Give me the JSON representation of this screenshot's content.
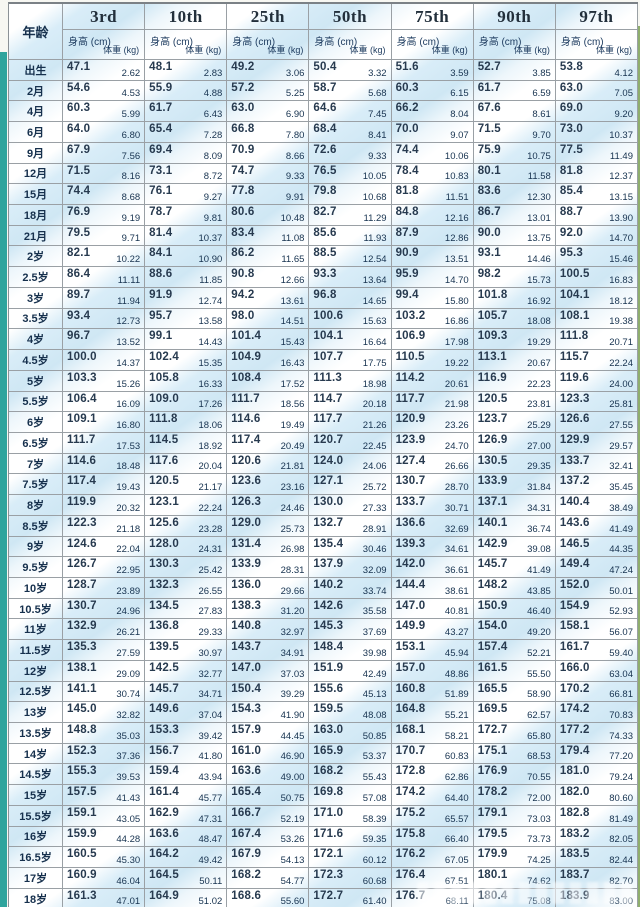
{
  "header": {
    "age_label": "年龄",
    "height_label": "身高 (cm)",
    "weight_label": "体重 (kg)",
    "percentiles": [
      "3rd",
      "10th",
      "25th",
      "50th",
      "75th",
      "90th",
      "97th"
    ]
  },
  "rows": [
    {
      "age": "出生",
      "cells": [
        [
          "47.1",
          "2.62"
        ],
        [
          "48.1",
          "2.83"
        ],
        [
          "49.2",
          "3.06"
        ],
        [
          "50.4",
          "3.32"
        ],
        [
          "51.6",
          "3.59"
        ],
        [
          "52.7",
          "3.85"
        ],
        [
          "53.8",
          "4.12"
        ]
      ]
    },
    {
      "age": "2月",
      "cells": [
        [
          "54.6",
          "4.53"
        ],
        [
          "55.9",
          "4.88"
        ],
        [
          "57.2",
          "5.25"
        ],
        [
          "58.7",
          "5.68"
        ],
        [
          "60.3",
          "6.15"
        ],
        [
          "61.7",
          "6.59"
        ],
        [
          "63.0",
          "7.05"
        ]
      ]
    },
    {
      "age": "4月",
      "cells": [
        [
          "60.3",
          "5.99"
        ],
        [
          "61.7",
          "6.43"
        ],
        [
          "63.0",
          "6.90"
        ],
        [
          "64.6",
          "7.45"
        ],
        [
          "66.2",
          "8.04"
        ],
        [
          "67.6",
          "8.61"
        ],
        [
          "69.0",
          "9.20"
        ]
      ]
    },
    {
      "age": "6月",
      "cells": [
        [
          "64.0",
          "6.80"
        ],
        [
          "65.4",
          "7.28"
        ],
        [
          "66.8",
          "7.80"
        ],
        [
          "68.4",
          "8.41"
        ],
        [
          "70.0",
          "9.07"
        ],
        [
          "71.5",
          "9.70"
        ],
        [
          "73.0",
          "10.37"
        ]
      ]
    },
    {
      "age": "9月",
      "cells": [
        [
          "67.9",
          "7.56"
        ],
        [
          "69.4",
          "8.09"
        ],
        [
          "70.9",
          "8.66"
        ],
        [
          "72.6",
          "9.33"
        ],
        [
          "74.4",
          "10.06"
        ],
        [
          "75.9",
          "10.75"
        ],
        [
          "77.5",
          "11.49"
        ]
      ]
    },
    {
      "age": "12月",
      "cells": [
        [
          "71.5",
          "8.16"
        ],
        [
          "73.1",
          "8.72"
        ],
        [
          "74.7",
          "9.33"
        ],
        [
          "76.5",
          "10.05"
        ],
        [
          "78.4",
          "10.83"
        ],
        [
          "80.1",
          "11.58"
        ],
        [
          "81.8",
          "12.37"
        ]
      ]
    },
    {
      "age": "15月",
      "cells": [
        [
          "74.4",
          "8.68"
        ],
        [
          "76.1",
          "9.27"
        ],
        [
          "77.8",
          "9.91"
        ],
        [
          "79.8",
          "10.68"
        ],
        [
          "81.8",
          "11.51"
        ],
        [
          "83.6",
          "12.30"
        ],
        [
          "85.4",
          "13.15"
        ]
      ]
    },
    {
      "age": "18月",
      "cells": [
        [
          "76.9",
          "9.19"
        ],
        [
          "78.7",
          "9.81"
        ],
        [
          "80.6",
          "10.48"
        ],
        [
          "82.7",
          "11.29"
        ],
        [
          "84.8",
          "12.16"
        ],
        [
          "86.7",
          "13.01"
        ],
        [
          "88.7",
          "13.90"
        ]
      ]
    },
    {
      "age": "21月",
      "cells": [
        [
          "79.5",
          "9.71"
        ],
        [
          "81.4",
          "10.37"
        ],
        [
          "83.4",
          "11.08"
        ],
        [
          "85.6",
          "11.93"
        ],
        [
          "87.9",
          "12.86"
        ],
        [
          "90.0",
          "13.75"
        ],
        [
          "92.0",
          "14.70"
        ]
      ]
    },
    {
      "age": "2岁",
      "cells": [
        [
          "82.1",
          "10.22"
        ],
        [
          "84.1",
          "10.90"
        ],
        [
          "86.2",
          "11.65"
        ],
        [
          "88.5",
          "12.54"
        ],
        [
          "90.9",
          "13.51"
        ],
        [
          "93.1",
          "14.46"
        ],
        [
          "95.3",
          "15.46"
        ]
      ]
    },
    {
      "age": "2.5岁",
      "cells": [
        [
          "86.4",
          "11.11"
        ],
        [
          "88.6",
          "11.85"
        ],
        [
          "90.8",
          "12.66"
        ],
        [
          "93.3",
          "13.64"
        ],
        [
          "95.9",
          "14.70"
        ],
        [
          "98.2",
          "15.73"
        ],
        [
          "100.5",
          "16.83"
        ]
      ]
    },
    {
      "age": "3岁",
      "cells": [
        [
          "89.7",
          "11.94"
        ],
        [
          "91.9",
          "12.74"
        ],
        [
          "94.2",
          "13.61"
        ],
        [
          "96.8",
          "14.65"
        ],
        [
          "99.4",
          "15.80"
        ],
        [
          "101.8",
          "16.92"
        ],
        [
          "104.1",
          "18.12"
        ]
      ]
    },
    {
      "age": "3.5岁",
      "cells": [
        [
          "93.4",
          "12.73"
        ],
        [
          "95.7",
          "13.58"
        ],
        [
          "98.0",
          "14.51"
        ],
        [
          "100.6",
          "15.63"
        ],
        [
          "103.2",
          "16.86"
        ],
        [
          "105.7",
          "18.08"
        ],
        [
          "108.1",
          "19.38"
        ]
      ]
    },
    {
      "age": "4岁",
      "cells": [
        [
          "96.7",
          "13.52"
        ],
        [
          "99.1",
          "14.43"
        ],
        [
          "101.4",
          "15.43"
        ],
        [
          "104.1",
          "16.64"
        ],
        [
          "106.9",
          "17.98"
        ],
        [
          "109.3",
          "19.29"
        ],
        [
          "111.8",
          "20.71"
        ]
      ]
    },
    {
      "age": "4.5岁",
      "cells": [
        [
          "100.0",
          "14.37"
        ],
        [
          "102.4",
          "15.35"
        ],
        [
          "104.9",
          "16.43"
        ],
        [
          "107.7",
          "17.75"
        ],
        [
          "110.5",
          "19.22"
        ],
        [
          "113.1",
          "20.67"
        ],
        [
          "115.7",
          "22.24"
        ]
      ]
    },
    {
      "age": "5岁",
      "cells": [
        [
          "103.3",
          "15.26"
        ],
        [
          "105.8",
          "16.33"
        ],
        [
          "108.4",
          "17.52"
        ],
        [
          "111.3",
          "18.98"
        ],
        [
          "114.2",
          "20.61"
        ],
        [
          "116.9",
          "22.23"
        ],
        [
          "119.6",
          "24.00"
        ]
      ]
    },
    {
      "age": "5.5岁",
      "cells": [
        [
          "106.4",
          "16.09"
        ],
        [
          "109.0",
          "17.26"
        ],
        [
          "111.7",
          "18.56"
        ],
        [
          "114.7",
          "20.18"
        ],
        [
          "117.7",
          "21.98"
        ],
        [
          "120.5",
          "23.81"
        ],
        [
          "123.3",
          "25.81"
        ]
      ]
    },
    {
      "age": "6岁",
      "cells": [
        [
          "109.1",
          "16.80"
        ],
        [
          "111.8",
          "18.06"
        ],
        [
          "114.6",
          "19.49"
        ],
        [
          "117.7",
          "21.26"
        ],
        [
          "120.9",
          "23.26"
        ],
        [
          "123.7",
          "25.29"
        ],
        [
          "126.6",
          "27.55"
        ]
      ]
    },
    {
      "age": "6.5岁",
      "cells": [
        [
          "111.7",
          "17.53"
        ],
        [
          "114.5",
          "18.92"
        ],
        [
          "117.4",
          "20.49"
        ],
        [
          "120.7",
          "22.45"
        ],
        [
          "123.9",
          "24.70"
        ],
        [
          "126.9",
          "27.00"
        ],
        [
          "129.9",
          "29.57"
        ]
      ]
    },
    {
      "age": "7岁",
      "cells": [
        [
          "114.6",
          "18.48"
        ],
        [
          "117.6",
          "20.04"
        ],
        [
          "120.6",
          "21.81"
        ],
        [
          "124.0",
          "24.06"
        ],
        [
          "127.4",
          "26.66"
        ],
        [
          "130.5",
          "29.35"
        ],
        [
          "133.7",
          "32.41"
        ]
      ]
    },
    {
      "age": "7.5岁",
      "cells": [
        [
          "117.4",
          "19.43"
        ],
        [
          "120.5",
          "21.17"
        ],
        [
          "123.6",
          "23.16"
        ],
        [
          "127.1",
          "25.72"
        ],
        [
          "130.7",
          "28.70"
        ],
        [
          "133.9",
          "31.84"
        ],
        [
          "137.2",
          "35.45"
        ]
      ]
    },
    {
      "age": "8岁",
      "cells": [
        [
          "119.9",
          "20.32"
        ],
        [
          "123.1",
          "22.24"
        ],
        [
          "126.3",
          "24.46"
        ],
        [
          "130.0",
          "27.33"
        ],
        [
          "133.7",
          "30.71"
        ],
        [
          "137.1",
          "34.31"
        ],
        [
          "140.4",
          "38.49"
        ]
      ]
    },
    {
      "age": "8.5岁",
      "cells": [
        [
          "122.3",
          "21.18"
        ],
        [
          "125.6",
          "23.28"
        ],
        [
          "129.0",
          "25.73"
        ],
        [
          "132.7",
          "28.91"
        ],
        [
          "136.6",
          "32.69"
        ],
        [
          "140.1",
          "36.74"
        ],
        [
          "143.6",
          "41.49"
        ]
      ]
    },
    {
      "age": "9岁",
      "cells": [
        [
          "124.6",
          "22.04"
        ],
        [
          "128.0",
          "24.31"
        ],
        [
          "131.4",
          "26.98"
        ],
        [
          "135.4",
          "30.46"
        ],
        [
          "139.3",
          "34.61"
        ],
        [
          "142.9",
          "39.08"
        ],
        [
          "146.5",
          "44.35"
        ]
      ]
    },
    {
      "age": "9.5岁",
      "cells": [
        [
          "126.7",
          "22.95"
        ],
        [
          "130.3",
          "25.42"
        ],
        [
          "133.9",
          "28.31"
        ],
        [
          "137.9",
          "32.09"
        ],
        [
          "142.0",
          "36.61"
        ],
        [
          "145.7",
          "41.49"
        ],
        [
          "149.4",
          "47.24"
        ]
      ]
    },
    {
      "age": "10岁",
      "cells": [
        [
          "128.7",
          "23.89"
        ],
        [
          "132.3",
          "26.55"
        ],
        [
          "136.0",
          "29.66"
        ],
        [
          "140.2",
          "33.74"
        ],
        [
          "144.4",
          "38.61"
        ],
        [
          "148.2",
          "43.85"
        ],
        [
          "152.0",
          "50.01"
        ]
      ]
    },
    {
      "age": "10.5岁",
      "cells": [
        [
          "130.7",
          "24.96"
        ],
        [
          "134.5",
          "27.83"
        ],
        [
          "138.3",
          "31.20"
        ],
        [
          "142.6",
          "35.58"
        ],
        [
          "147.0",
          "40.81"
        ],
        [
          "150.9",
          "46.40"
        ],
        [
          "154.9",
          "52.93"
        ]
      ]
    },
    {
      "age": "11岁",
      "cells": [
        [
          "132.9",
          "26.21"
        ],
        [
          "136.8",
          "29.33"
        ],
        [
          "140.8",
          "32.97"
        ],
        [
          "145.3",
          "37.69"
        ],
        [
          "149.9",
          "43.27"
        ],
        [
          "154.0",
          "49.20"
        ],
        [
          "158.1",
          "56.07"
        ]
      ]
    },
    {
      "age": "11.5岁",
      "cells": [
        [
          "135.3",
          "27.59"
        ],
        [
          "139.5",
          "30.97"
        ],
        [
          "143.7",
          "34.91"
        ],
        [
          "148.4",
          "39.98"
        ],
        [
          "153.1",
          "45.94"
        ],
        [
          "157.4",
          "52.21"
        ],
        [
          "161.7",
          "59.40"
        ]
      ]
    },
    {
      "age": "12岁",
      "cells": [
        [
          "138.1",
          "29.09"
        ],
        [
          "142.5",
          "32.77"
        ],
        [
          "147.0",
          "37.03"
        ],
        [
          "151.9",
          "42.49"
        ],
        [
          "157.0",
          "48.86"
        ],
        [
          "161.5",
          "55.50"
        ],
        [
          "166.0",
          "63.04"
        ]
      ]
    },
    {
      "age": "12.5岁",
      "cells": [
        [
          "141.1",
          "30.74"
        ],
        [
          "145.7",
          "34.71"
        ],
        [
          "150.4",
          "39.29"
        ],
        [
          "155.6",
          "45.13"
        ],
        [
          "160.8",
          "51.89"
        ],
        [
          "165.5",
          "58.90"
        ],
        [
          "170.2",
          "66.81"
        ]
      ]
    },
    {
      "age": "13岁",
      "cells": [
        [
          "145.0",
          "32.82"
        ],
        [
          "149.6",
          "37.04"
        ],
        [
          "154.3",
          "41.90"
        ],
        [
          "159.5",
          "48.08"
        ],
        [
          "164.8",
          "55.21"
        ],
        [
          "169.5",
          "62.57"
        ],
        [
          "174.2",
          "70.83"
        ]
      ]
    },
    {
      "age": "13.5岁",
      "cells": [
        [
          "148.8",
          "35.03"
        ],
        [
          "153.3",
          "39.42"
        ],
        [
          "157.9",
          "44.45"
        ],
        [
          "163.0",
          "50.85"
        ],
        [
          "168.1",
          "58.21"
        ],
        [
          "172.7",
          "65.80"
        ],
        [
          "177.2",
          "74.33"
        ]
      ]
    },
    {
      "age": "14岁",
      "cells": [
        [
          "152.3",
          "37.36"
        ],
        [
          "156.7",
          "41.80"
        ],
        [
          "161.0",
          "46.90"
        ],
        [
          "165.9",
          "53.37"
        ],
        [
          "170.7",
          "60.83"
        ],
        [
          "175.1",
          "68.53"
        ],
        [
          "179.4",
          "77.20"
        ]
      ]
    },
    {
      "age": "14.5岁",
      "cells": [
        [
          "155.3",
          "39.53"
        ],
        [
          "159.4",
          "43.94"
        ],
        [
          "163.6",
          "49.00"
        ],
        [
          "168.2",
          "55.43"
        ],
        [
          "172.8",
          "62.86"
        ],
        [
          "176.9",
          "70.55"
        ],
        [
          "181.0",
          "79.24"
        ]
      ]
    },
    {
      "age": "15岁",
      "cells": [
        [
          "157.5",
          "41.43"
        ],
        [
          "161.4",
          "45.77"
        ],
        [
          "165.4",
          "50.75"
        ],
        [
          "169.8",
          "57.08"
        ],
        [
          "174.2",
          "64.40"
        ],
        [
          "178.2",
          "72.00"
        ],
        [
          "182.0",
          "80.60"
        ]
      ]
    },
    {
      "age": "15.5岁",
      "cells": [
        [
          "159.1",
          "43.05"
        ],
        [
          "162.9",
          "47.31"
        ],
        [
          "166.7",
          "52.19"
        ],
        [
          "171.0",
          "58.39"
        ],
        [
          "175.2",
          "65.57"
        ],
        [
          "179.1",
          "73.03"
        ],
        [
          "182.8",
          "81.49"
        ]
      ]
    },
    {
      "age": "16岁",
      "cells": [
        [
          "159.9",
          "44.28"
        ],
        [
          "163.6",
          "48.47"
        ],
        [
          "167.4",
          "53.26"
        ],
        [
          "171.6",
          "59.35"
        ],
        [
          "175.8",
          "66.40"
        ],
        [
          "179.5",
          "73.73"
        ],
        [
          "183.2",
          "82.05"
        ]
      ]
    },
    {
      "age": "16.5岁",
      "cells": [
        [
          "160.5",
          "45.30"
        ],
        [
          "164.2",
          "49.42"
        ],
        [
          "167.9",
          "54.13"
        ],
        [
          "172.1",
          "60.12"
        ],
        [
          "176.2",
          "67.05"
        ],
        [
          "179.9",
          "74.25"
        ],
        [
          "183.5",
          "82.44"
        ]
      ]
    },
    {
      "age": "17岁",
      "cells": [
        [
          "160.9",
          "46.04"
        ],
        [
          "164.5",
          "50.11"
        ],
        [
          "168.2",
          "54.77"
        ],
        [
          "172.3",
          "60.68"
        ],
        [
          "176.4",
          "67.51"
        ],
        [
          "180.1",
          "74.62"
        ],
        [
          "183.7",
          "82.70"
        ]
      ]
    },
    {
      "age": "18岁",
      "cells": [
        [
          "161.3",
          "47.01"
        ],
        [
          "164.9",
          "51.02"
        ],
        [
          "168.6",
          "55.60"
        ],
        [
          "172.7",
          "61.40"
        ],
        [
          "176.7",
          "68.11"
        ],
        [
          "180.4",
          "75.08"
        ],
        [
          "183.9",
          "83.00"
        ]
      ]
    }
  ]
}
